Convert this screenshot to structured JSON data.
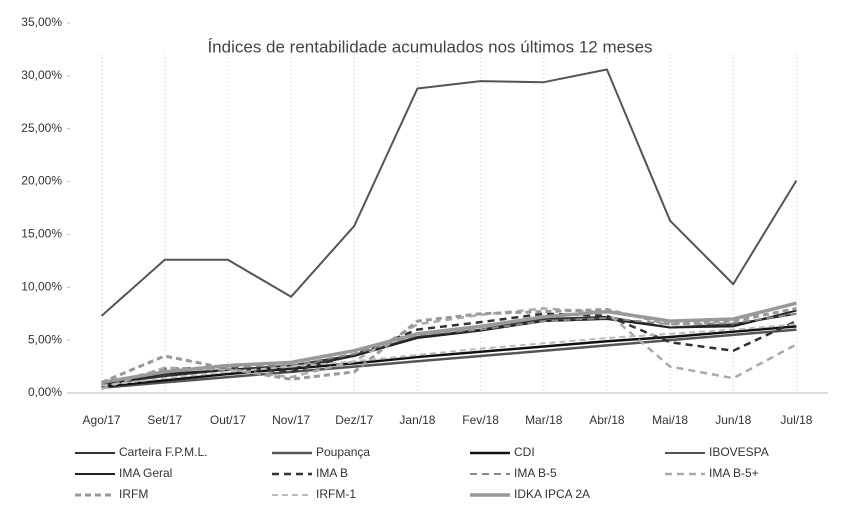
{
  "chart_data": {
    "type": "line",
    "title": "Índices de rentabilidade acumulados nos últimos 12 meses",
    "categories": [
      "Ago/17",
      "Set/17",
      "Out/17",
      "Nov/17",
      "Dez/17",
      "Jan/18",
      "Fev/18",
      "Mar/18",
      "Abr/18",
      "Mai/18",
      "Jun/18",
      "Jul/18"
    ],
    "ylim": [
      0,
      35
    ],
    "yticks": [
      {
        "value": 0,
        "label": "0,00%"
      },
      {
        "value": 5,
        "label": "5,00%"
      },
      {
        "value": 10,
        "label": "10,00%"
      },
      {
        "value": 15,
        "label": "15,00%"
      },
      {
        "value": 20,
        "label": "20,00%"
      },
      {
        "value": 25,
        "label": "25,00%"
      },
      {
        "value": 30,
        "label": "30,00%"
      },
      {
        "value": 35,
        "label": "35,00%"
      }
    ],
    "series": [
      {
        "name": "Carteira F.P.M.L.",
        "color": "#333333",
        "dash": "none",
        "width": 2,
        "values": [
          0.8,
          1.6,
          2.2,
          2.6,
          3.6,
          5.3,
          6.0,
          7.0,
          7.2,
          6.2,
          6.5,
          7.5
        ]
      },
      {
        "name": "Poupança",
        "color": "#555555",
        "dash": "none",
        "width": 2.5,
        "values": [
          0.5,
          1.0,
          1.5,
          2.0,
          2.5,
          3.0,
          3.5,
          4.0,
          4.5,
          5.0,
          5.5,
          6.0
        ]
      },
      {
        "name": "CDI",
        "color": "#111111",
        "dash": "none",
        "width": 2.5,
        "values": [
          0.6,
          1.2,
          1.8,
          2.3,
          2.8,
          3.4,
          3.9,
          4.4,
          4.9,
          5.3,
          5.8,
          6.3
        ]
      },
      {
        "name": "IBOVESPA",
        "color": "#555555",
        "dash": "none",
        "width": 2,
        "values": [
          7.3,
          12.6,
          12.6,
          9.1,
          15.8,
          28.8,
          29.5,
          29.4,
          30.6,
          16.3,
          10.3,
          20.1
        ]
      },
      {
        "name": "IMA Geral",
        "color": "#222222",
        "dash": "none",
        "width": 2,
        "values": [
          0.8,
          1.8,
          2.2,
          2.3,
          3.5,
          5.2,
          5.9,
          6.8,
          7.0,
          6.2,
          6.3,
          7.8
        ]
      },
      {
        "name": "IMA B",
        "color": "#333333",
        "dash": "7,5",
        "width": 2.5,
        "values": [
          0.7,
          2.3,
          2.4,
          2.0,
          3.6,
          6.0,
          6.7,
          7.5,
          7.3,
          4.8,
          4.0,
          6.8
        ]
      },
      {
        "name": "IMA B-5",
        "color": "#888888",
        "dash": "7,5",
        "width": 2,
        "values": [
          0.9,
          2.2,
          2.5,
          2.6,
          3.7,
          5.5,
          6.0,
          6.8,
          7.1,
          6.5,
          6.6,
          7.5
        ]
      },
      {
        "name": "IMA B-5+",
        "color": "#aaaaaa",
        "dash": "7,5",
        "width": 2.5,
        "values": [
          0.4,
          2.4,
          2.2,
          1.5,
          3.0,
          6.5,
          7.4,
          8.0,
          7.6,
          2.5,
          1.4,
          4.6
        ]
      },
      {
        "name": "IRFM",
        "color": "#999999",
        "dash": "6,4",
        "width": 3,
        "values": [
          1.0,
          3.5,
          2.3,
          1.3,
          2.0,
          6.8,
          7.5,
          7.7,
          7.9,
          6.5,
          6.8,
          8.0
        ]
      },
      {
        "name": "IRFM-1",
        "color": "#bbbbbb",
        "dash": "6,4",
        "width": 2,
        "values": [
          0.7,
          1.4,
          2.0,
          2.5,
          3.0,
          3.6,
          4.2,
          4.7,
          5.2,
          5.6,
          6.0,
          6.5
        ]
      },
      {
        "name": "IDKA IPCA 2A",
        "color": "#999999",
        "dash": "none",
        "width": 3.5,
        "values": [
          1.0,
          2.0,
          2.6,
          2.9,
          4.0,
          5.6,
          6.3,
          7.2,
          7.7,
          6.8,
          7.0,
          8.5
        ]
      }
    ]
  }
}
